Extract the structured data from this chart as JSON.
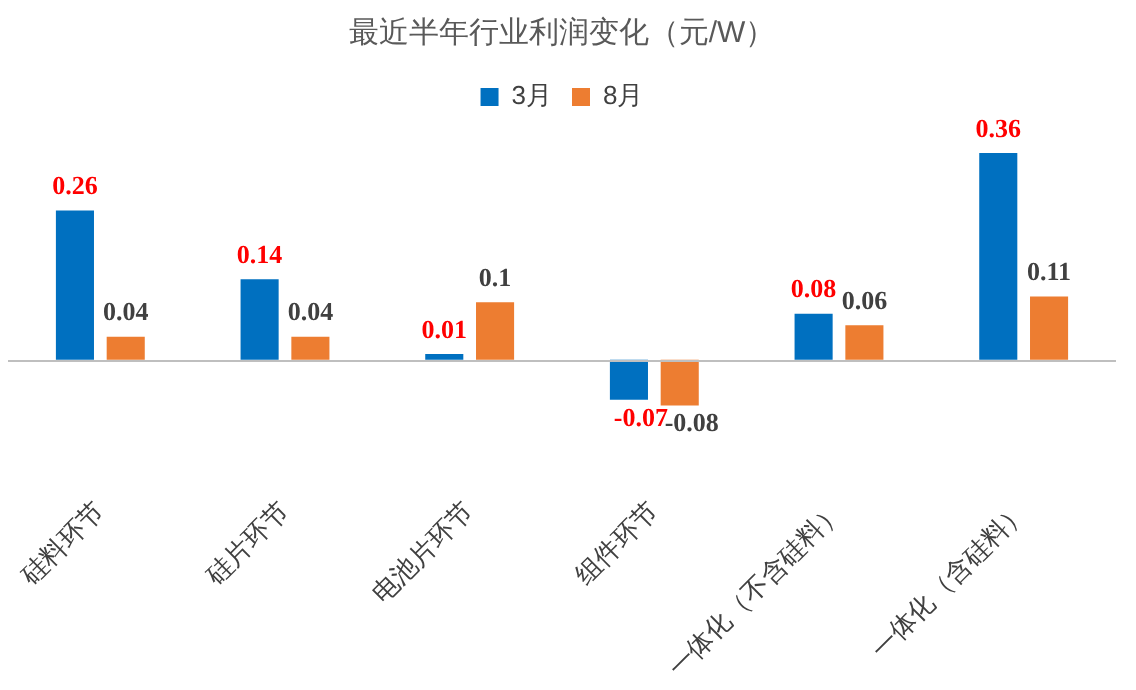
{
  "chart_data": {
    "type": "bar",
    "title": "最近半年行业利润变化（元/W）",
    "categories": [
      "硅料环节",
      "硅片环节",
      "电池片环节",
      "组件环节",
      "一体化（不含硅料）",
      "一体化（含硅料）"
    ],
    "series": [
      {
        "name": "3月",
        "color": "#0070c0",
        "values": [
          0.26,
          0.14,
          0.01,
          -0.07,
          0.08,
          0.36
        ]
      },
      {
        "name": "8月",
        "color": "#ed7d31",
        "values": [
          0.04,
          0.04,
          0.1,
          -0.08,
          0.06,
          0.11
        ]
      }
    ],
    "data_labels": true,
    "legend": "top"
  }
}
